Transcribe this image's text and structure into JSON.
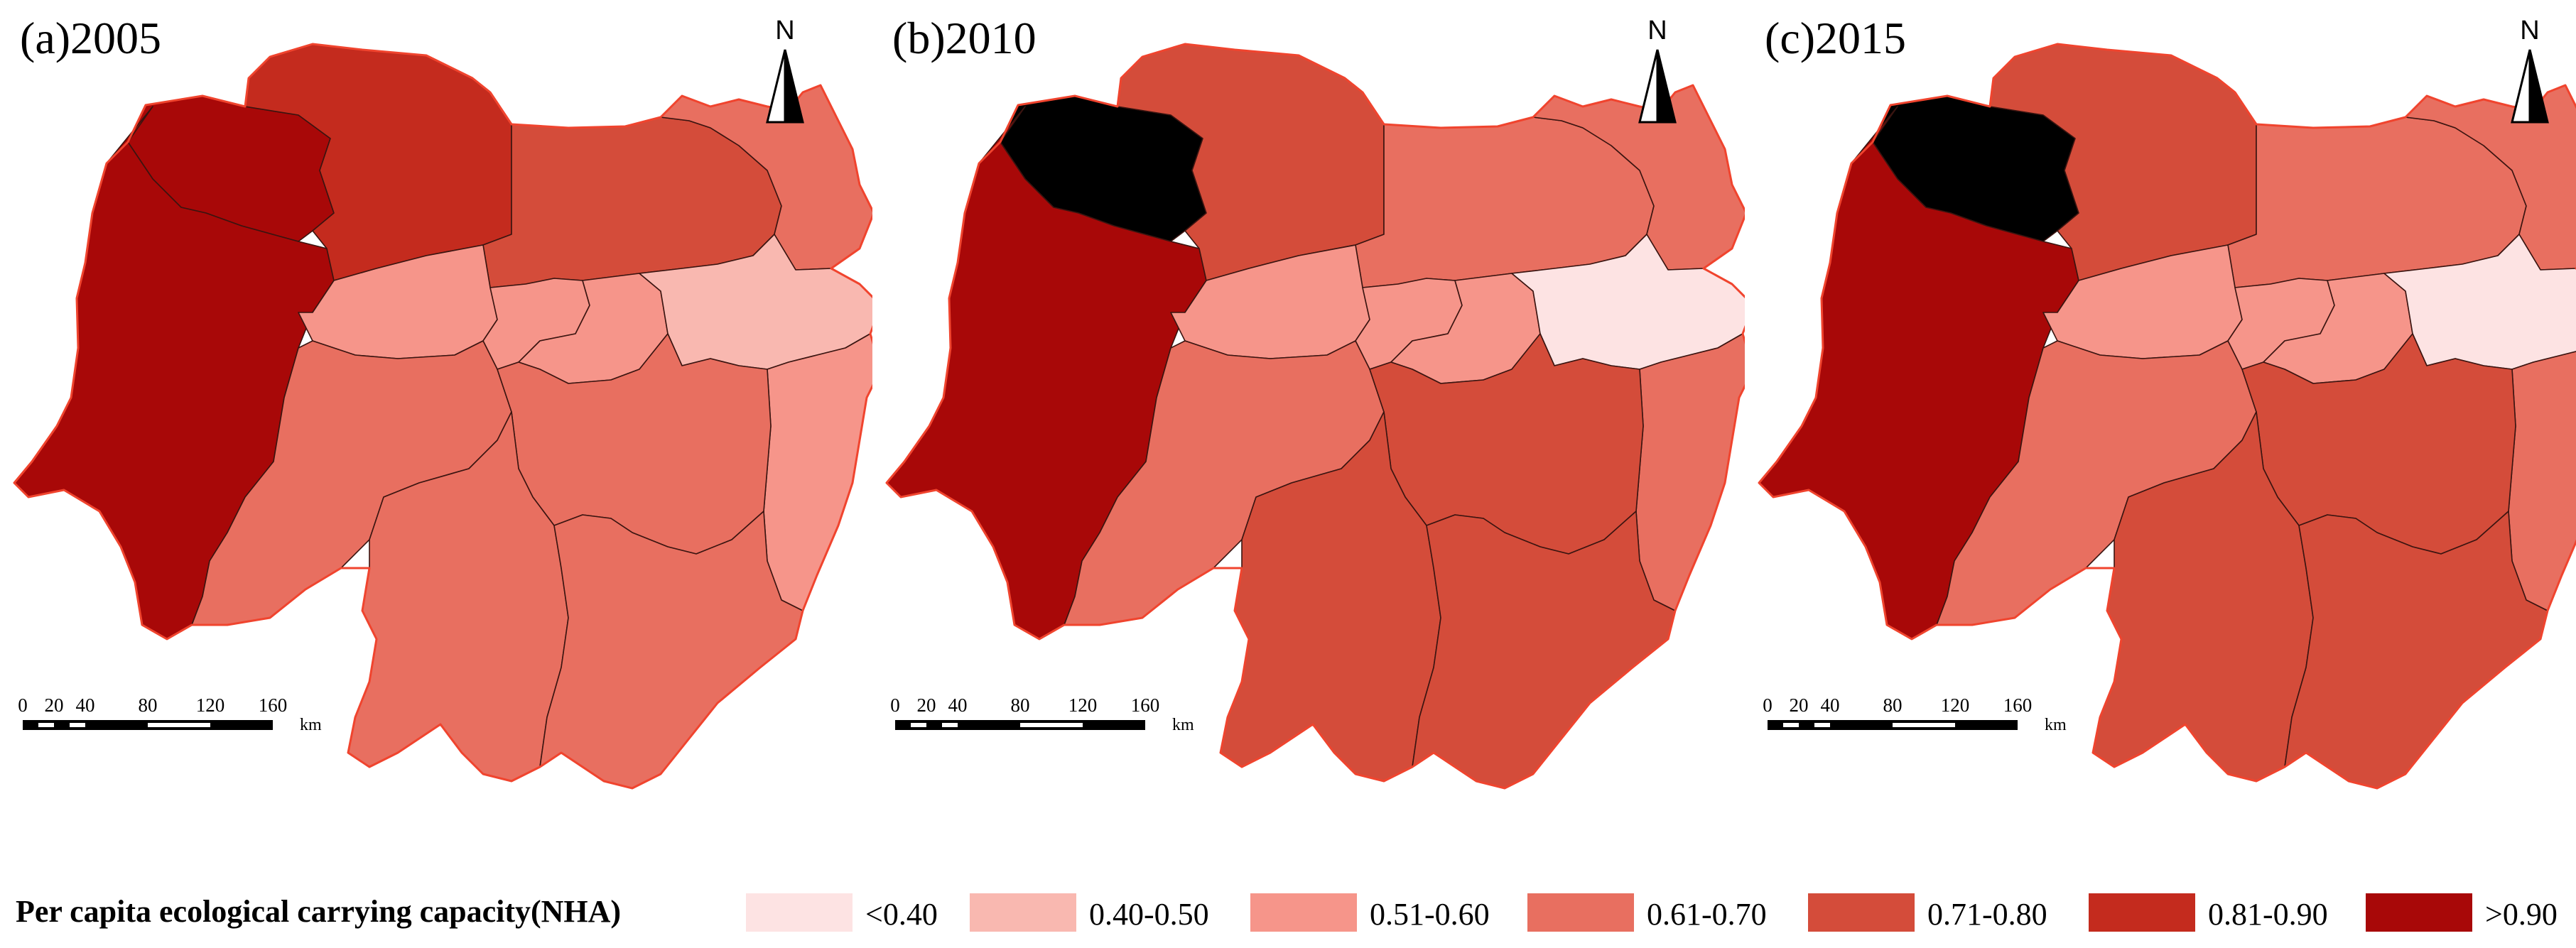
{
  "panels": [
    {
      "label": "(a)2005",
      "classes": {
        "w1": 6,
        "w2": 6,
        "n1": 5,
        "n2": 4,
        "n3": 3,
        "c1": 2,
        "c2": 2,
        "c3": 2,
        "ce": 1,
        "e1": 2,
        "sw": 3,
        "s1": 3,
        "s2": 3,
        "s3": 3
      }
    },
    {
      "label": "(b)2010",
      "classes": {
        "w1": 7,
        "w2": 6,
        "n1": 4,
        "n2": 3,
        "n3": 3,
        "c1": 2,
        "c2": 2,
        "c3": 2,
        "ce": 0,
        "e1": 3,
        "sw": 3,
        "s1": 4,
        "s2": 4,
        "s3": 4
      }
    },
    {
      "label": "(c)2015",
      "classes": {
        "w1": 7,
        "w2": 6,
        "n1": 4,
        "n2": 3,
        "n3": 3,
        "c1": 2,
        "c2": 2,
        "c3": 2,
        "ce": 0,
        "e1": 3,
        "sw": 3,
        "s1": 4,
        "s2": 4,
        "s3": 4
      }
    }
  ],
  "north": "N",
  "scale_bar": {
    "ticks": [
      "0",
      "20",
      "40",
      "80",
      "120",
      "160"
    ],
    "unit": "km"
  },
  "legend": {
    "title": "Per capita ecological carrying capacity(NHA)",
    "items": [
      {
        "label": "<0.40",
        "color": "#fde3e3"
      },
      {
        "label": "0.40-0.50",
        "color": "#f9b8b0"
      },
      {
        "label": "0.51-0.60",
        "color": "#f6958a"
      },
      {
        "label": "0.61-0.70",
        "color": "#e86f60"
      },
      {
        "label": "0.71-0.80",
        "color": "#d44c3a"
      },
      {
        "label": "0.81-0.90",
        "color": "#c42b1e"
      },
      {
        "label": ">0.90",
        "color": "#a80808"
      }
    ]
  },
  "palette_extra": {
    "gray_class": "#f0c8c2"
  }
}
